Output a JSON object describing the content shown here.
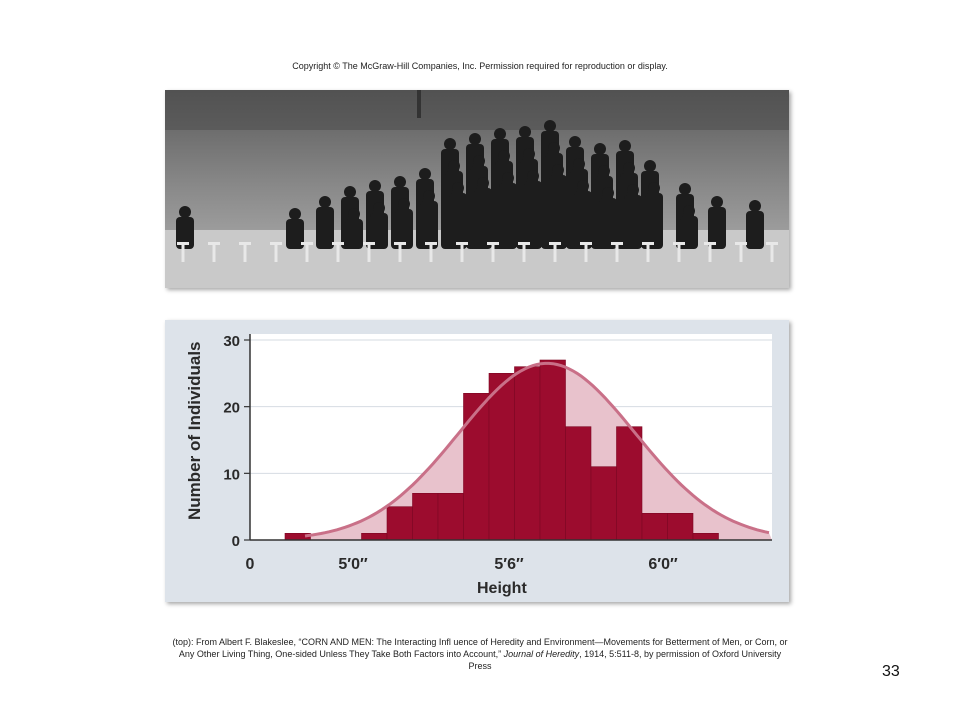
{
  "copyright": "Copyright © The McGraw-Hill Companies, Inc. Permission required for reproduction or display.",
  "photo": {
    "description_icon": "student-lineup-photo"
  },
  "chart_data": {
    "type": "bar",
    "xlabel": "Height",
    "ylabel": "Number of Individuals",
    "ylim": [
      0,
      30
    ],
    "yticks": [
      0,
      10,
      20,
      30
    ],
    "xtick_labels": [
      "0",
      "5′0″",
      "5′6″",
      "6′0″"
    ],
    "grid": true,
    "bar_count": 15,
    "values": [
      1,
      0,
      0,
      1,
      5,
      7,
      7,
      22,
      25,
      26,
      27,
      17,
      11,
      17,
      4,
      4,
      1
    ],
    "curve_label": "",
    "colors": {
      "bar": "#9c0c2e",
      "curve": "#c97088",
      "curve_fill": "#e8c2cc",
      "background": "#dde3ea"
    }
  },
  "credit": {
    "prefix": "(top): From Albert F. Blakeslee, “CORN AND MEN: The Interacting Infl uence of Heredity and Environment—Movements for Betterment of Men, or Corn, or Any Other Living Thing, One-sided Unless They Take Both Factors into Account,” ",
    "journal": "Journal of Heredity",
    "suffix": ", 1914, 5:511-8, by permission of Oxford University Press"
  },
  "page_number": "33"
}
